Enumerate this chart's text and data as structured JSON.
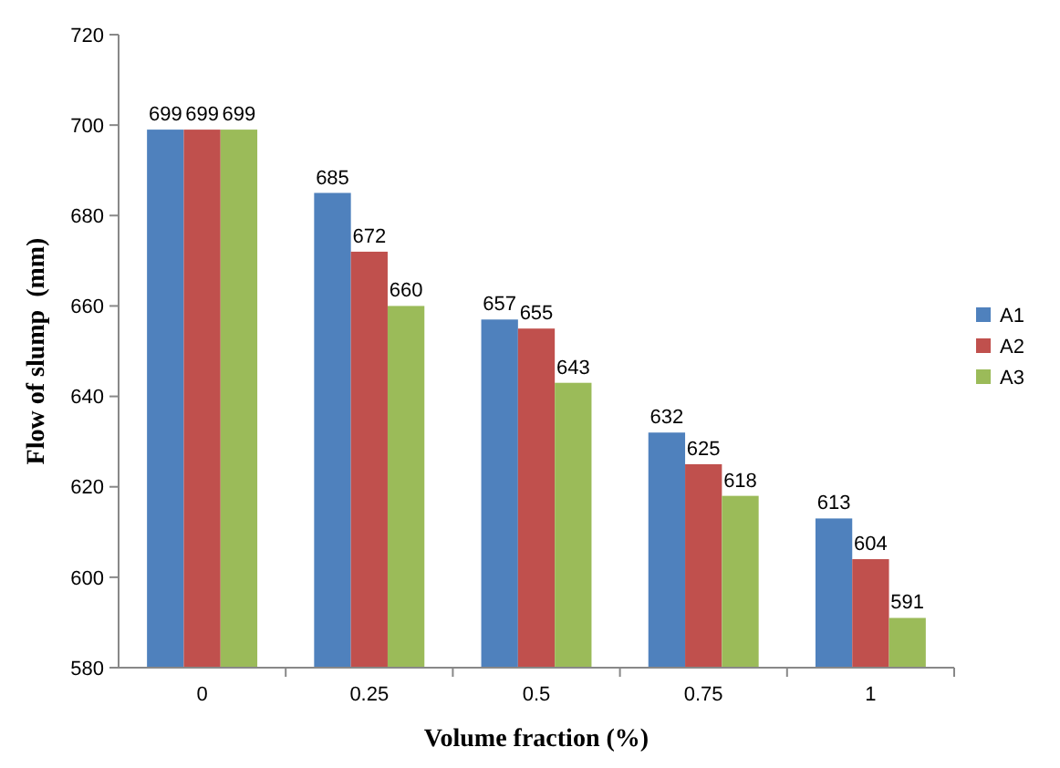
{
  "chart_data": {
    "type": "bar",
    "xlabel": "Volume fraction (%)",
    "ylabel": "Flow of slump  (mm)",
    "categories": [
      "0",
      "0.25",
      "0.5",
      "0.75",
      "1"
    ],
    "series": [
      {
        "name": "A1",
        "color": "#4f81bd",
        "values": [
          699,
          685,
          657,
          632,
          613
        ]
      },
      {
        "name": "A2",
        "color": "#c0504d",
        "values": [
          699,
          672,
          655,
          625,
          604
        ]
      },
      {
        "name": "A3",
        "color": "#9bbb59",
        "values": [
          699,
          660,
          643,
          618,
          591
        ]
      }
    ],
    "ylim": [
      580,
      720
    ],
    "yticks": [
      580,
      600,
      620,
      640,
      660,
      680,
      700,
      720
    ],
    "data_labels": true,
    "legend": "right",
    "grid": false
  }
}
